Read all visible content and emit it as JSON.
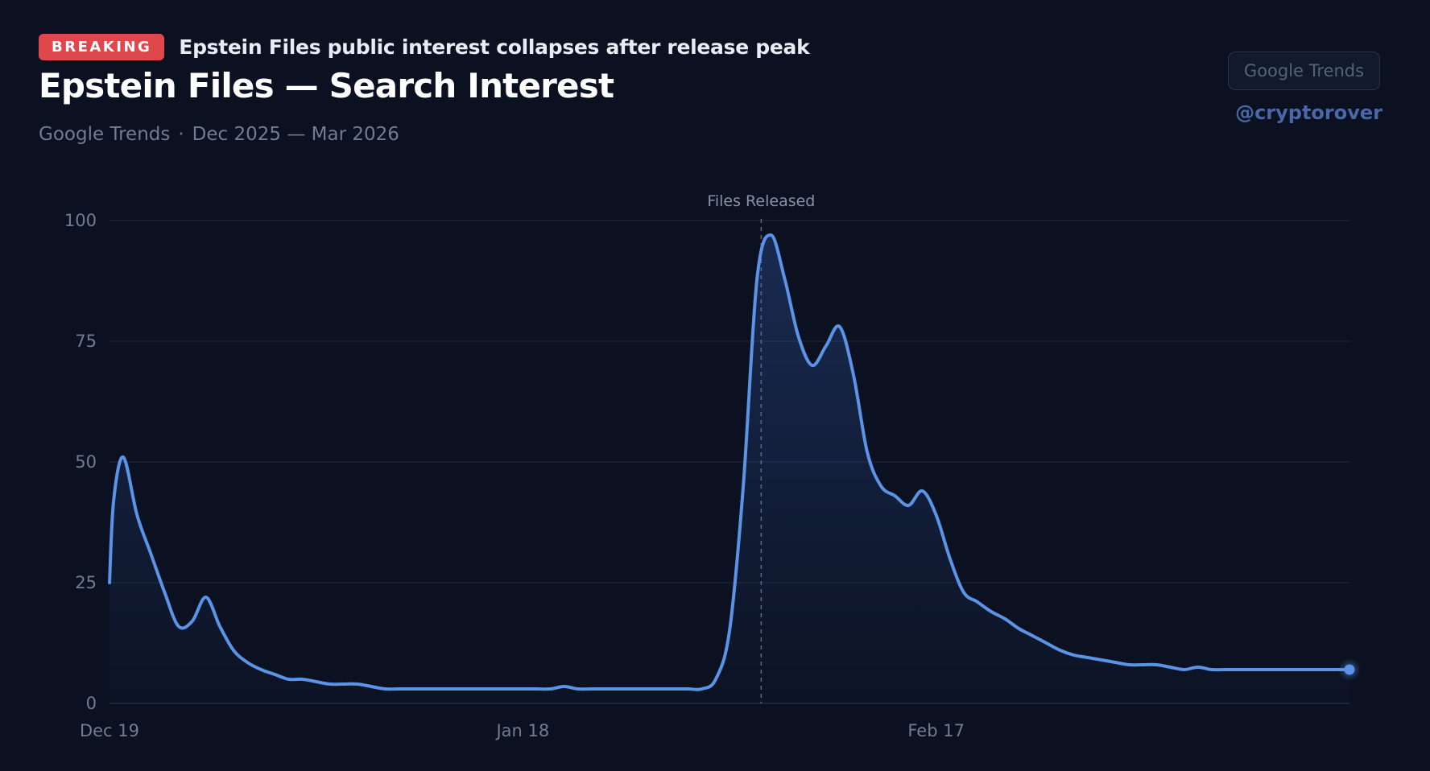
{
  "header": {
    "badge": "BREAKING",
    "headline": "Epstein Files public interest collapses after release peak",
    "title": "Epstein Files — Search Interest",
    "source": "Google Trends",
    "separator": "·",
    "date_range": "Dec 2025 — Mar 2026"
  },
  "source_button": {
    "label": "Google Trends"
  },
  "handle": "@cryptorover",
  "colors": {
    "background": "#0b1120",
    "line": "#5b93e6",
    "badge": "#e0474c",
    "grid": "#1e2738"
  },
  "chart_data": {
    "type": "area",
    "title": "Epstein Files — Search Interest",
    "xlabel": "",
    "ylabel": "",
    "ylim": [
      0,
      100
    ],
    "yticks": [
      "0",
      "25",
      "50",
      "75",
      "100"
    ],
    "xticks": [
      {
        "label": "Dec 19",
        "day": 0
      },
      {
        "label": "Jan 18",
        "day": 30
      },
      {
        "label": "Feb 17",
        "day": 60
      }
    ],
    "annotation": {
      "label": "Files Released",
      "day": 47.3
    },
    "series": [
      {
        "name": "Epstein Files",
        "x": [
          0,
          0.3,
          1,
          2,
          3,
          4,
          5,
          6,
          7,
          8,
          9,
          10,
          11,
          12,
          13,
          14,
          15,
          16,
          17,
          18,
          19,
          20,
          21,
          22,
          23,
          24,
          25,
          26,
          27,
          28,
          29,
          30,
          31,
          32,
          33,
          34,
          35,
          36,
          37,
          38,
          39,
          40,
          41,
          42,
          43,
          44,
          45,
          46,
          47,
          48,
          49,
          50,
          51,
          52,
          53,
          54,
          55,
          56,
          57,
          58,
          59,
          60,
          61,
          62,
          63,
          64,
          65,
          66,
          67,
          68,
          69,
          70,
          71,
          72,
          73,
          74,
          75,
          76,
          77,
          78,
          79,
          80,
          81,
          82,
          83,
          84,
          85,
          86,
          87,
          88,
          89,
          90
        ],
        "values": [
          25,
          42,
          51,
          39,
          31,
          23,
          16,
          17,
          22,
          16,
          11,
          8.5,
          7,
          6,
          5,
          5,
          4.5,
          4,
          4,
          4,
          3.5,
          3,
          3,
          3,
          3,
          3,
          3,
          3,
          3,
          3,
          3,
          3,
          3,
          3,
          3.5,
          3,
          3,
          3,
          3,
          3,
          3,
          3,
          3,
          3,
          3,
          5,
          15,
          45,
          88,
          97,
          88,
          76,
          70,
          74,
          78,
          68,
          52,
          45,
          43,
          41,
          44,
          39,
          30,
          23,
          21,
          19,
          17.5,
          15.5,
          14,
          12.5,
          11,
          10,
          9.5,
          9,
          8.5,
          8,
          8,
          8,
          7.5,
          7,
          7.5,
          7,
          7,
          7,
          7,
          7,
          7,
          7,
          7,
          7,
          7,
          7
        ]
      }
    ]
  }
}
